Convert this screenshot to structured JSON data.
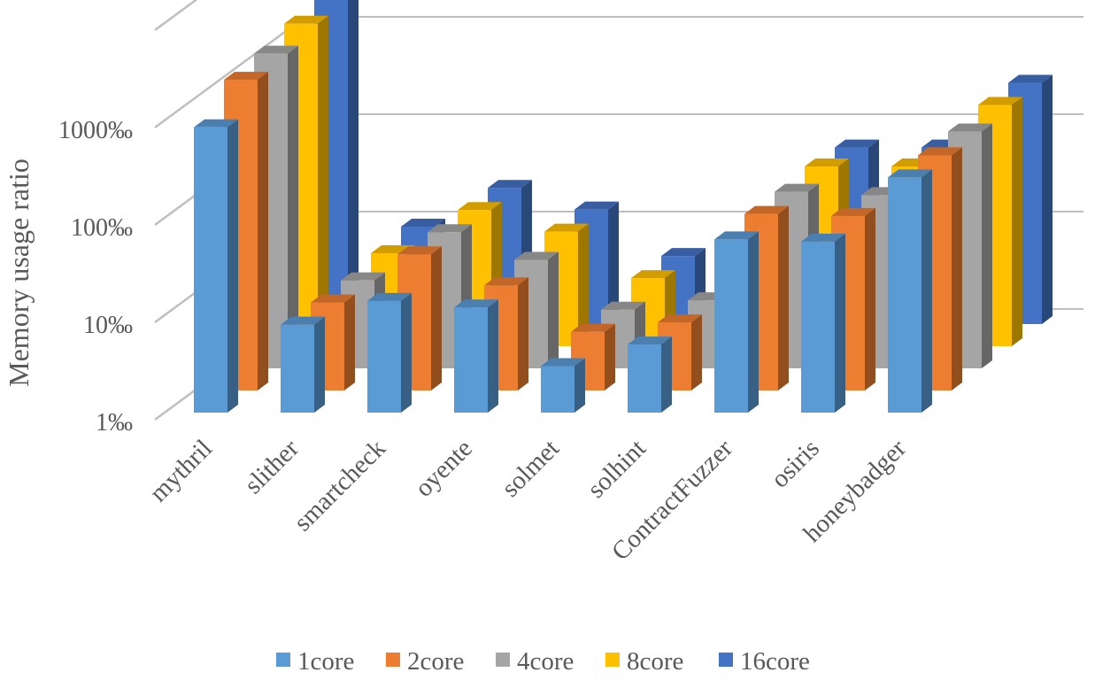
{
  "chart_data": {
    "type": "bar",
    "style": "3d-clustered-column",
    "title": "",
    "xlabel": "",
    "ylabel": "Memory usage ratio",
    "yscale": "log",
    "ylim": [
      1,
      10000
    ],
    "yticks": [
      "1‰",
      "10‰",
      "100‰",
      "1000‰"
    ],
    "categories": [
      "mythril",
      "slither",
      "smartcheck",
      "oyente",
      "solmet",
      "solhint",
      "ContractFuzzer",
      "osiris",
      "honeybadger"
    ],
    "series": [
      {
        "name": "1core",
        "color": "#5b9bd5",
        "values": [
          850,
          8,
          14,
          12,
          3,
          5,
          60,
          57,
          260
        ]
      },
      {
        "name": "2core",
        "color": "#ed7d31",
        "values": [
          1550,
          8,
          25,
          12,
          4,
          5,
          65,
          62,
          260
        ]
      },
      {
        "name": "4core",
        "color": "#a5a5a5",
        "values": [
          1700,
          8,
          25,
          13,
          4,
          5,
          65,
          60,
          270
        ]
      },
      {
        "name": "8core",
        "color": "#ffc000",
        "values": [
          2050,
          9,
          25,
          15,
          5,
          6,
          70,
          70,
          300
        ]
      },
      {
        "name": "16core",
        "color": "#4472c4",
        "values": [
          2500,
          10,
          25,
          15,
          5,
          5,
          65,
          65,
          300
        ]
      }
    ],
    "grid": true,
    "legend_position": "bottom"
  }
}
